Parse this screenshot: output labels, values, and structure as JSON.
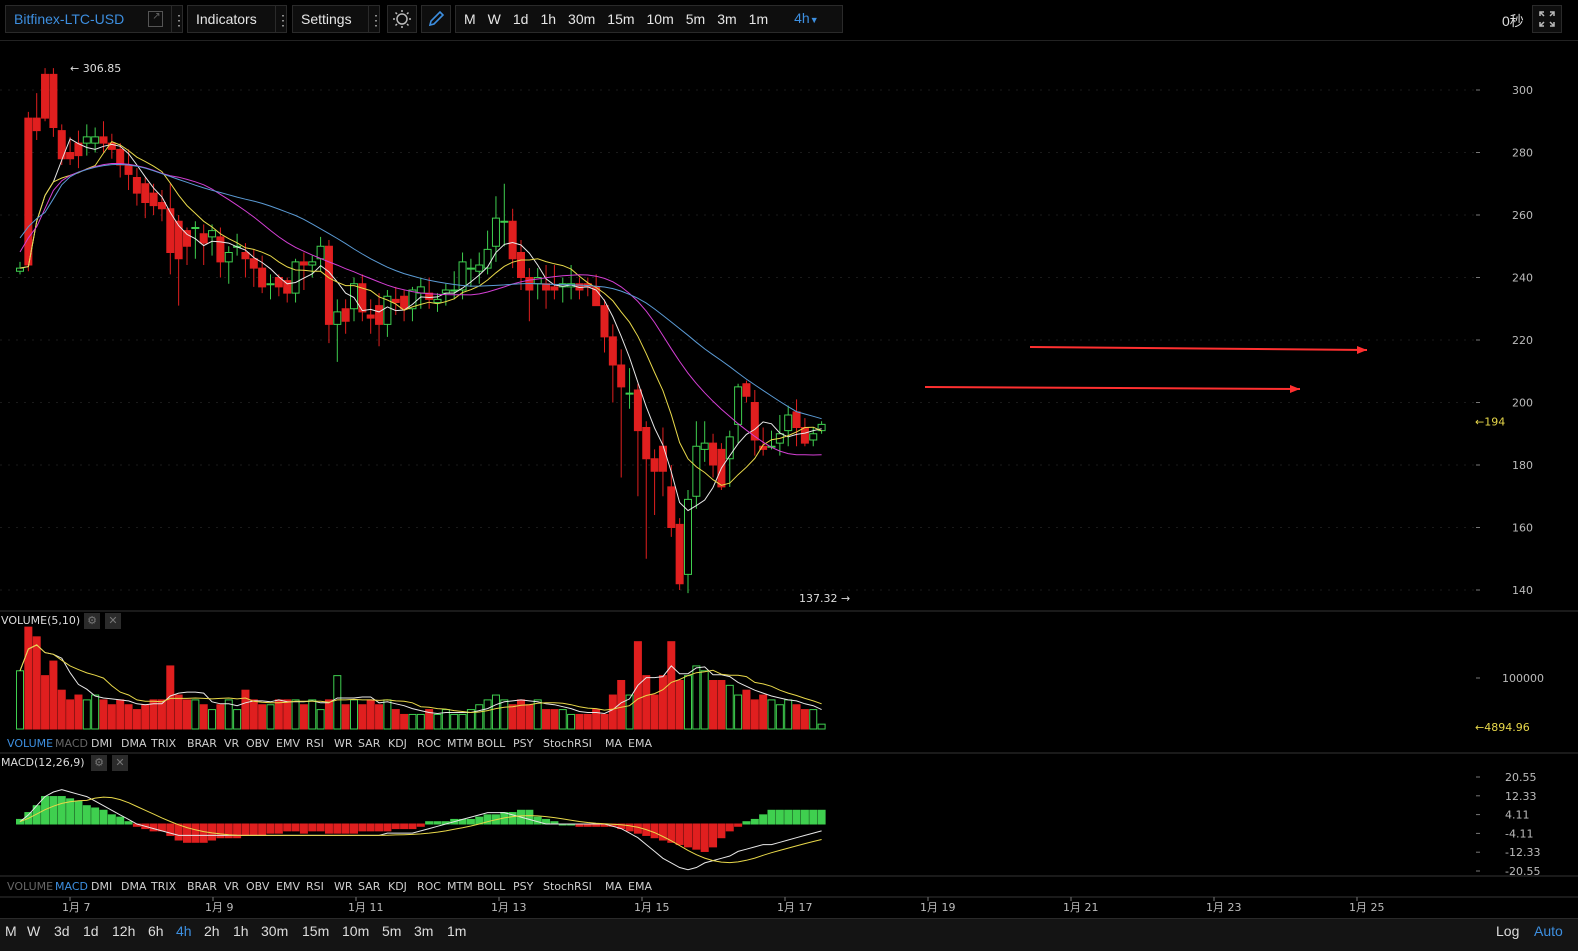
{
  "toolbar": {
    "symbol": "Bitfinex-LTC-USD",
    "indicators_label": "Indicators",
    "settings_label": "Settings",
    "periods": [
      "M",
      "W",
      "1d",
      "1h",
      "30m",
      "15m",
      "10m",
      "5m",
      "3m",
      "1m"
    ],
    "active_period": "4h",
    "countdown": "0秒"
  },
  "price_axis": {
    "ticks": [
      "300",
      "280",
      "260",
      "240",
      "220",
      "200",
      "180",
      "160",
      "140"
    ],
    "current_price": "194",
    "high_label": "306.85",
    "low_label": "137.32"
  },
  "volume_pane": {
    "label": "VOLUME(5,10)",
    "axis_tick": "100000",
    "current_value": "4894.96"
  },
  "macd_pane": {
    "label": "MACD(12,26,9)",
    "axis_ticks": [
      "20.55",
      "12.33",
      "4.11",
      "-4.11",
      "-12.33",
      "-20.55"
    ]
  },
  "indicator_tabs": [
    "VOLUME",
    "MACD",
    "DMI",
    "DMA",
    "TRIX",
    "BRAR",
    "VR",
    "OBV",
    "EMV",
    "RSI",
    "WR",
    "SAR",
    "KDJ",
    "ROC",
    "MTM",
    "BOLL",
    "PSY",
    "StochRSI",
    "MA",
    "EMA"
  ],
  "date_axis": [
    "1月 7",
    "1月 9",
    "1月 11",
    "1月 13",
    "1月 15",
    "1月 17",
    "1月 19",
    "1月 21",
    "1月 23",
    "1月 25"
  ],
  "bottom_bar": {
    "periods": [
      "M",
      "W",
      "3d",
      "1d",
      "12h",
      "6h",
      "4h",
      "2h",
      "1h",
      "30m",
      "15m",
      "10m",
      "5m",
      "3m",
      "1m"
    ],
    "active": "4h",
    "log_label": "Log",
    "auto_label": "Auto"
  },
  "colors": {
    "up": "#3fcf4f",
    "down": "#e01f1f",
    "ma5": "#e8e8e8",
    "ma10": "#e8d84a",
    "ma20": "#d43fd4",
    "ma30": "#5b9bd5",
    "accent": "#3d8fe0",
    "annotation": "#ff3030"
  }
}
